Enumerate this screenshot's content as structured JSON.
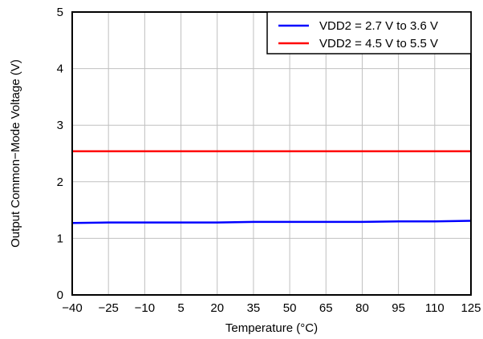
{
  "chart_data": {
    "type": "line",
    "title": "",
    "xlabel": "Temperature (°C)",
    "ylabel": "Output Common−Mode Voltage (V)",
    "xlim": [
      -40,
      125
    ],
    "ylim": [
      0,
      5
    ],
    "x_ticks": [
      -40,
      -25,
      -10,
      5,
      20,
      35,
      50,
      65,
      80,
      95,
      110,
      125
    ],
    "x_tick_labels": [
      "−40",
      "−25",
      "−10",
      "5",
      "20",
      "35",
      "50",
      "65",
      "80",
      "95",
      "110",
      "125"
    ],
    "y_ticks": [
      0,
      1,
      2,
      3,
      4,
      5
    ],
    "y_tick_labels": [
      "0",
      "1",
      "2",
      "3",
      "4",
      "5"
    ],
    "grid": true,
    "legend_position": "top-right",
    "series": [
      {
        "name": "VDD2 = 2.7 V to 3.6 V",
        "color": "#0000ff",
        "x": [
          -40,
          -25,
          -10,
          5,
          20,
          35,
          50,
          65,
          80,
          95,
          110,
          125
        ],
        "y": [
          1.27,
          1.28,
          1.28,
          1.28,
          1.28,
          1.29,
          1.29,
          1.29,
          1.29,
          1.3,
          1.3,
          1.31
        ]
      },
      {
        "name": "VDD2 = 4.5 V to 5.5 V",
        "color": "#ff0000",
        "x": [
          -40,
          -25,
          -10,
          5,
          20,
          35,
          50,
          65,
          80,
          95,
          110,
          125
        ],
        "y": [
          2.54,
          2.54,
          2.54,
          2.54,
          2.54,
          2.54,
          2.54,
          2.54,
          2.54,
          2.54,
          2.54,
          2.54
        ]
      }
    ]
  }
}
